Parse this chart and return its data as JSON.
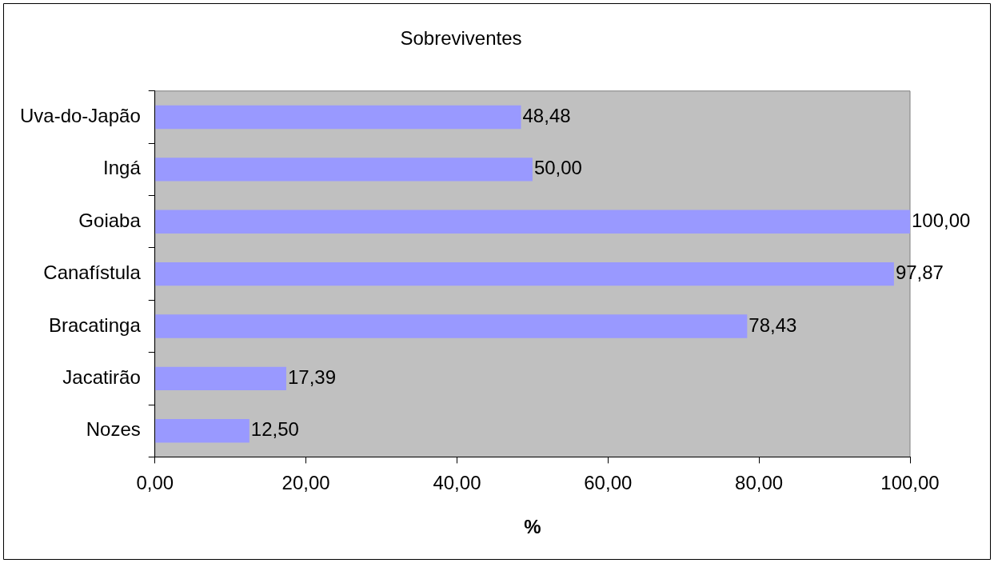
{
  "chart_data": {
    "type": "bar",
    "orientation": "horizontal",
    "title": "Sobreviventes",
    "xlabel": "%",
    "categories": [
      "Uva-do-Japão",
      "Ingá",
      "Goiaba",
      "Canafístula",
      "Bracatinga",
      "Jacatirão",
      "Nozes"
    ],
    "values": [
      48.48,
      50,
      100,
      97.87,
      78.43,
      17.39,
      12.5
    ],
    "value_labels": [
      "48,48",
      "50,00",
      "100,00",
      "97,87",
      "78,43",
      "17,39",
      "12,50"
    ],
    "color": "#9999ff",
    "xlim": [
      0,
      100
    ],
    "xticks": [
      {
        "value": 0,
        "label": "0,00"
      },
      {
        "value": 20,
        "label": "20,00"
      },
      {
        "value": 40,
        "label": "40,00"
      },
      {
        "value": 60,
        "label": "60,00"
      },
      {
        "value": 80,
        "label": "80,00"
      },
      {
        "value": 100,
        "label": "100,00"
      }
    ],
    "grid": false,
    "legend": false
  }
}
